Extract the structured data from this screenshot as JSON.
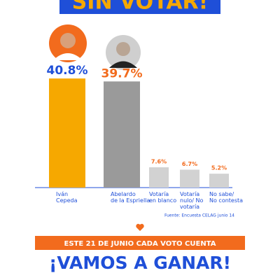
{
  "chart_data": {
    "type": "bar",
    "title": "SIN VOTAR!",
    "categories": [
      "Iván\nCepeda",
      "Abelardo\nde la Espriella",
      "Votaría\nen blanco",
      "Votaría\nnulo/ No\nvotaría",
      "No sabe/\nNo contesta"
    ],
    "values": [
      40.8,
      39.7,
      7.6,
      6.7,
      5.2
    ],
    "value_labels": [
      "40.8%",
      "39.7%",
      "7.6%",
      "6.7%",
      "5.2%"
    ],
    "colors": [
      "#f6a800",
      "#9a9a9a",
      "#d2d2d2",
      "#d2d2d2",
      "#d2d2d2"
    ],
    "label_colors": [
      "#1f4fd8",
      "#f26b1d",
      "#f26b1d",
      "#f26b1d",
      "#f26b1d"
    ],
    "source": "Fuente: Encuesta CELAG junio 14",
    "banner": "ESTE 21 DE JUNIO CADA VOTO CUENTA",
    "slogan": "¡VAMOS A GANAR!"
  }
}
